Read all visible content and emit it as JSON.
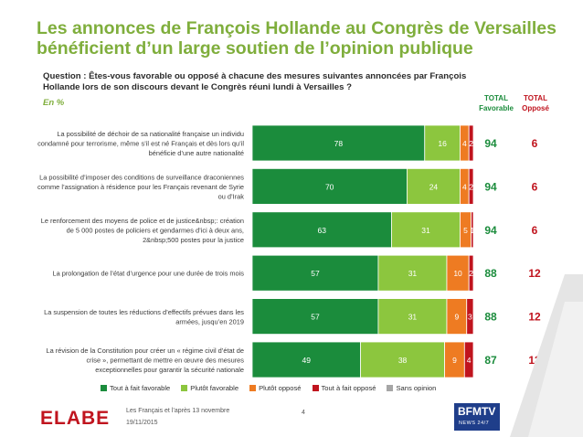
{
  "title": [
    "Les annonces de François Hollande au Congrès de Versailles",
    "bénéficient d’un large soutien de l’opinion publique"
  ],
  "question": [
    "Question : Êtes-vous favorable ou opposé à chacune des mesures suivantes annoncées par François",
    "Hollande lors de son discours devant le Congrès réuni lundi à Versailles ?"
  ],
  "unit": "En %",
  "col_headers": {
    "favorable": [
      "TOTAL",
      "Favorable"
    ],
    "oppose": [
      "TOTAL",
      "Opposé"
    ]
  },
  "colors": {
    "tout_favorable": "#1b8c3c",
    "plutot_favorable": "#8cc63e",
    "plutot_oppose": "#ee7b22",
    "tout_oppose": "#c0141e",
    "sans_opinion": "#a6a6a6",
    "total_favorable_text": "#1b8c3c",
    "total_oppose_text": "#c0141e"
  },
  "footer": {
    "logo": "ELABE",
    "source": "Les Français et l’après 13 novembre",
    "date": "19/11/2015",
    "page": "4",
    "brand": {
      "line1": "BFMTV",
      "line2": "NEWS 24/7"
    }
  },
  "chart_data": {
    "type": "bar",
    "orientation": "horizontal",
    "stacked": true,
    "categories": [
      [
        "La possibilité de déchoir de sa nationalité française un individu",
        "condamné pour terrorisme, même s’il est né Français et dès lors qu’il",
        "bénéficie d’une autre nationalité"
      ],
      [
        "La possibilité d’imposer des conditions de surveillance draconiennes",
        "comme l’assignation à résidence pour les Français revenant de Syrie",
        "ou d’Irak"
      ],
      [
        "Le renforcement des moyens de police et de justice&nbsp;: création",
        "de 5 000 postes de policiers et gendarmes d’ici à deux ans,",
        "2&nbsp;500 postes pour la justice"
      ],
      [
        "La prolongation de l’état d’urgence pour une durée de trois mois"
      ],
      [
        "La suspension de toutes les réductions d’effectifs prévues dans les",
        "armées, jusqu’en 2019"
      ],
      [
        "La révision de la Constitution pour créer un « régime civil d’état de",
        "crise », permettant de mettre en œuvre des mesures",
        "exceptionnelles pour garantir la sécurité nationale"
      ]
    ],
    "series": [
      {
        "name": "Tout à fait favorable",
        "values": [
          78,
          70,
          63,
          57,
          57,
          49
        ]
      },
      {
        "name": "Plutôt favorable",
        "values": [
          16,
          24,
          31,
          31,
          31,
          38
        ]
      },
      {
        "name": "Plutôt opposé",
        "values": [
          4,
          4,
          5,
          10,
          9,
          9
        ]
      },
      {
        "name": "Tout à fait opposé",
        "values": [
          2,
          2,
          1,
          2,
          3,
          4
        ]
      },
      {
        "name": "Sans opinion",
        "values": [
          0,
          0,
          0,
          0,
          0,
          0
        ]
      }
    ],
    "total_favorable": [
      94,
      94,
      94,
      88,
      88,
      87
    ],
    "total_oppose": [
      6,
      6,
      6,
      12,
      12,
      13
    ],
    "xlim": [
      0,
      100
    ],
    "legend_position": "bottom"
  }
}
